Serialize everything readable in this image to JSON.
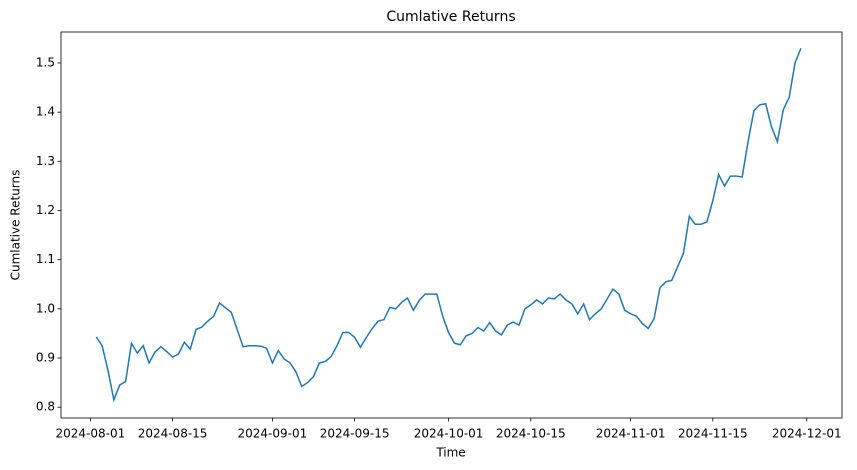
{
  "chart_data": {
    "type": "line",
    "title": "Cumlative Returns",
    "x_label": "Time",
    "y_label": "Cumlative Returns",
    "x": [
      "2024-08-02",
      "2024-08-03",
      "2024-08-04",
      "2024-08-05",
      "2024-08-06",
      "2024-08-07",
      "2024-08-08",
      "2024-08-09",
      "2024-08-10",
      "2024-08-11",
      "2024-08-12",
      "2024-08-13",
      "2024-08-14",
      "2024-08-15",
      "2024-08-16",
      "2024-08-17",
      "2024-08-18",
      "2024-08-19",
      "2024-08-20",
      "2024-08-21",
      "2024-08-22",
      "2024-08-23",
      "2024-08-24",
      "2024-08-25",
      "2024-08-26",
      "2024-08-27",
      "2024-08-28",
      "2024-08-29",
      "2024-08-30",
      "2024-08-31",
      "2024-09-01",
      "2024-09-02",
      "2024-09-03",
      "2024-09-04",
      "2024-09-05",
      "2024-09-06",
      "2024-09-07",
      "2024-09-08",
      "2024-09-09",
      "2024-09-10",
      "2024-09-11",
      "2024-09-12",
      "2024-09-13",
      "2024-09-14",
      "2024-09-15",
      "2024-09-16",
      "2024-09-17",
      "2024-09-18",
      "2024-09-19",
      "2024-09-20",
      "2024-09-21",
      "2024-09-22",
      "2024-09-23",
      "2024-09-24",
      "2024-09-25",
      "2024-09-26",
      "2024-09-27",
      "2024-09-28",
      "2024-09-29",
      "2024-09-30",
      "2024-10-01",
      "2024-10-02",
      "2024-10-03",
      "2024-10-04",
      "2024-10-05",
      "2024-10-06",
      "2024-10-07",
      "2024-10-08",
      "2024-10-09",
      "2024-10-10",
      "2024-10-11",
      "2024-10-12",
      "2024-10-13",
      "2024-10-14",
      "2024-10-15",
      "2024-10-16",
      "2024-10-17",
      "2024-10-18",
      "2024-10-19",
      "2024-10-20",
      "2024-10-21",
      "2024-10-22",
      "2024-10-23",
      "2024-10-24",
      "2024-10-25",
      "2024-10-26",
      "2024-10-27",
      "2024-10-28",
      "2024-10-29",
      "2024-10-30",
      "2024-10-31",
      "2024-11-01",
      "2024-11-02",
      "2024-11-03",
      "2024-11-04",
      "2024-11-05",
      "2024-11-06",
      "2024-11-07",
      "2024-11-08",
      "2024-11-09",
      "2024-11-10",
      "2024-11-11",
      "2024-11-12",
      "2024-11-13",
      "2024-11-14",
      "2024-11-15",
      "2024-11-16",
      "2024-11-17",
      "2024-11-18",
      "2024-11-19",
      "2024-11-20",
      "2024-11-21",
      "2024-11-22",
      "2024-11-23",
      "2024-11-24",
      "2024-11-25",
      "2024-11-26",
      "2024-11-27",
      "2024-11-28",
      "2024-11-29",
      "2024-11-30"
    ],
    "values": [
      0.943,
      0.925,
      0.875,
      0.815,
      0.845,
      0.852,
      0.93,
      0.91,
      0.925,
      0.89,
      0.912,
      0.923,
      0.913,
      0.902,
      0.908,
      0.932,
      0.918,
      0.958,
      0.963,
      0.975,
      0.985,
      1.012,
      1.002,
      0.993,
      0.958,
      0.923,
      0.925,
      0.925,
      0.924,
      0.92,
      0.89,
      0.915,
      0.898,
      0.89,
      0.872,
      0.842,
      0.85,
      0.862,
      0.89,
      0.893,
      0.903,
      0.925,
      0.952,
      0.952,
      0.942,
      0.922,
      0.942,
      0.96,
      0.975,
      0.978,
      1.003,
      1.0,
      1.013,
      1.022,
      0.997,
      1.017,
      1.03,
      1.03,
      1.03,
      0.985,
      0.952,
      0.93,
      0.927,
      0.945,
      0.95,
      0.962,
      0.955,
      0.972,
      0.955,
      0.947,
      0.967,
      0.973,
      0.967,
      1.0,
      1.008,
      1.018,
      1.01,
      1.022,
      1.02,
      1.03,
      1.018,
      1.01,
      0.99,
      1.01,
      0.978,
      0.99,
      1.0,
      1.02,
      1.04,
      1.03,
      0.997,
      0.99,
      0.985,
      0.97,
      0.96,
      0.98,
      1.043,
      1.055,
      1.058,
      1.085,
      1.113,
      1.188,
      1.172,
      1.172,
      1.177,
      1.22,
      1.273,
      1.25,
      1.27,
      1.27,
      1.268,
      1.34,
      1.403,
      1.415,
      1.417,
      1.37,
      1.34,
      1.405,
      1.43,
      1.5,
      1.53
    ],
    "color": "#1f77b4",
    "xlim": [
      "2024-07-27",
      "2024-12-07"
    ],
    "xticks": [
      "2024-08-01",
      "2024-08-15",
      "2024-09-01",
      "2024-09-15",
      "2024-10-01",
      "2024-10-15",
      "2024-11-01",
      "2024-11-15",
      "2024-12-01"
    ],
    "ylim": [
      0.778,
      1.563
    ],
    "yticks": [
      0.8,
      0.9,
      {
        "value": 1.0,
        "label": "1.0"
      },
      1.1,
      1.2,
      1.3,
      1.4,
      1.5
    ],
    "grid": false
  }
}
